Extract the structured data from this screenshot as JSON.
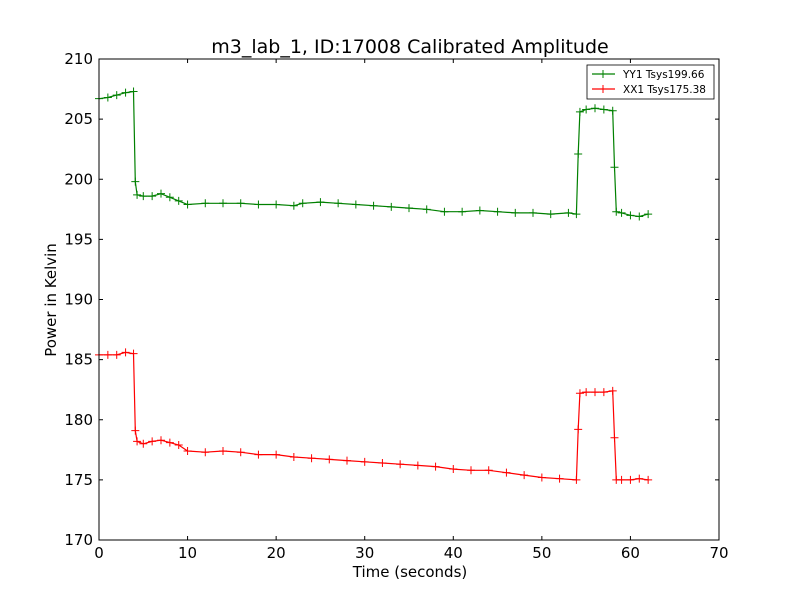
{
  "chart_data": {
    "type": "line",
    "title": "m3_lab_1, ID:17008 Calibrated Amplitude",
    "xlabel": "Time (seconds)",
    "ylabel": "Power in Kelvin",
    "xlim": [
      0,
      70
    ],
    "ylim": [
      170,
      210
    ],
    "xticks": [
      "0",
      "10",
      "20",
      "30",
      "40",
      "50",
      "60",
      "70"
    ],
    "yticks": [
      "170",
      "175",
      "180",
      "185",
      "190",
      "195",
      "200",
      "205",
      "210"
    ],
    "grid": false,
    "legend_position": "top-right",
    "series": [
      {
        "name": "YY1 Tsys199.66",
        "color": "#008000",
        "marker": "+",
        "points": [
          [
            0,
            206.7
          ],
          [
            1,
            206.8
          ],
          [
            2,
            207.0
          ],
          [
            3,
            207.2
          ],
          [
            3.9,
            207.3
          ],
          [
            4.1,
            199.8
          ],
          [
            4.3,
            198.7
          ],
          [
            5,
            198.6
          ],
          [
            6,
            198.6
          ],
          [
            7,
            198.8
          ],
          [
            8,
            198.5
          ],
          [
            9,
            198.2
          ],
          [
            10,
            197.9
          ],
          [
            12,
            198.0
          ],
          [
            14,
            198.0
          ],
          [
            16,
            198.0
          ],
          [
            18,
            197.9
          ],
          [
            20,
            197.9
          ],
          [
            22,
            197.8
          ],
          [
            23,
            198.0
          ],
          [
            25,
            198.1
          ],
          [
            27,
            198.0
          ],
          [
            29,
            197.9
          ],
          [
            31,
            197.8
          ],
          [
            33,
            197.7
          ],
          [
            35,
            197.6
          ],
          [
            37,
            197.5
          ],
          [
            39,
            197.3
          ],
          [
            41,
            197.3
          ],
          [
            43,
            197.4
          ],
          [
            45,
            197.3
          ],
          [
            47,
            197.2
          ],
          [
            49,
            197.2
          ],
          [
            51,
            197.1
          ],
          [
            53,
            197.2
          ],
          [
            53.9,
            197.1
          ],
          [
            54.1,
            202.1
          ],
          [
            54.3,
            205.6
          ],
          [
            55,
            205.8
          ],
          [
            56,
            205.9
          ],
          [
            57,
            205.8
          ],
          [
            58,
            205.7
          ],
          [
            58.2,
            201.0
          ],
          [
            58.4,
            197.3
          ],
          [
            59,
            197.2
          ],
          [
            60,
            197.0
          ],
          [
            61,
            196.9
          ],
          [
            62,
            197.1
          ]
        ]
      },
      {
        "name": "XX1 Tsys175.38",
        "color": "#ff0000",
        "marker": "+",
        "points": [
          [
            0,
            185.4
          ],
          [
            1,
            185.4
          ],
          [
            2,
            185.4
          ],
          [
            3,
            185.6
          ],
          [
            3.9,
            185.5
          ],
          [
            4.1,
            179.1
          ],
          [
            4.3,
            178.2
          ],
          [
            5,
            178.0
          ],
          [
            6,
            178.2
          ],
          [
            7,
            178.3
          ],
          [
            8,
            178.1
          ],
          [
            9,
            177.9
          ],
          [
            10,
            177.4
          ],
          [
            12,
            177.3
          ],
          [
            14,
            177.4
          ],
          [
            16,
            177.3
          ],
          [
            18,
            177.1
          ],
          [
            20,
            177.1
          ],
          [
            22,
            176.9
          ],
          [
            24,
            176.8
          ],
          [
            26,
            176.7
          ],
          [
            28,
            176.6
          ],
          [
            30,
            176.5
          ],
          [
            32,
            176.4
          ],
          [
            34,
            176.3
          ],
          [
            36,
            176.2
          ],
          [
            38,
            176.1
          ],
          [
            40,
            175.9
          ],
          [
            42,
            175.8
          ],
          [
            44,
            175.8
          ],
          [
            46,
            175.6
          ],
          [
            48,
            175.4
          ],
          [
            50,
            175.2
          ],
          [
            52,
            175.1
          ],
          [
            53.9,
            175.0
          ],
          [
            54.1,
            179.2
          ],
          [
            54.3,
            182.2
          ],
          [
            55,
            182.3
          ],
          [
            56,
            182.3
          ],
          [
            57,
            182.3
          ],
          [
            58,
            182.4
          ],
          [
            58.2,
            178.5
          ],
          [
            58.4,
            175.0
          ],
          [
            59,
            175.0
          ],
          [
            60,
            175.0
          ],
          [
            61,
            175.1
          ],
          [
            62,
            175.0
          ]
        ]
      }
    ]
  }
}
